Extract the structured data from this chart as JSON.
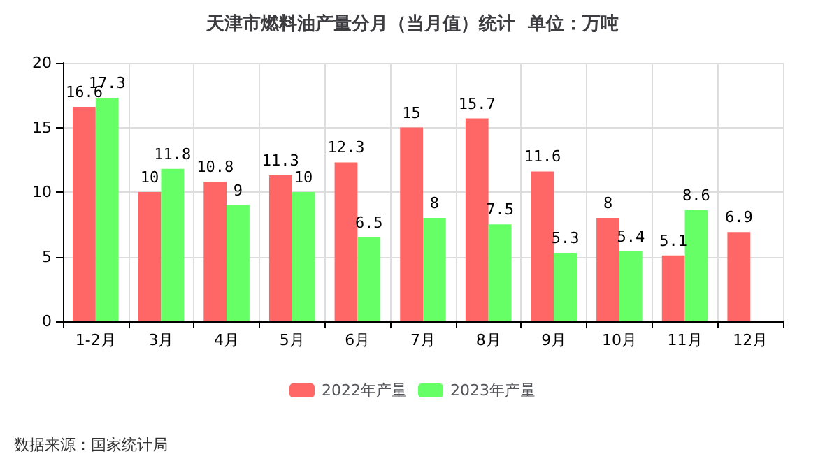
{
  "chart_data": {
    "type": "bar",
    "title": "天津市燃料油产量分月（当月值）统计  单位：万吨",
    "categories": [
      "1-2月",
      "3月",
      "4月",
      "5月",
      "6月",
      "7月",
      "8月",
      "9月",
      "10月",
      "11月",
      "12月"
    ],
    "series": [
      {
        "name": "2022年产量",
        "color": "#ff6666",
        "values": [
          16.6,
          10,
          10.8,
          11.3,
          12.3,
          15,
          15.7,
          11.6,
          8,
          5.1,
          6.9
        ]
      },
      {
        "name": "2023年产量",
        "color": "#66ff66",
        "values": [
          17.3,
          11.8,
          9,
          10,
          6.5,
          8,
          7.5,
          5.3,
          5.4,
          8.6,
          null
        ]
      }
    ],
    "ylim": [
      0,
      20
    ],
    "yticks": [
      0,
      5,
      10,
      15,
      20
    ],
    "grid": true,
    "legend": "bottom",
    "data_labels": true,
    "annotations": [
      "数据来源：国家统计局"
    ]
  }
}
